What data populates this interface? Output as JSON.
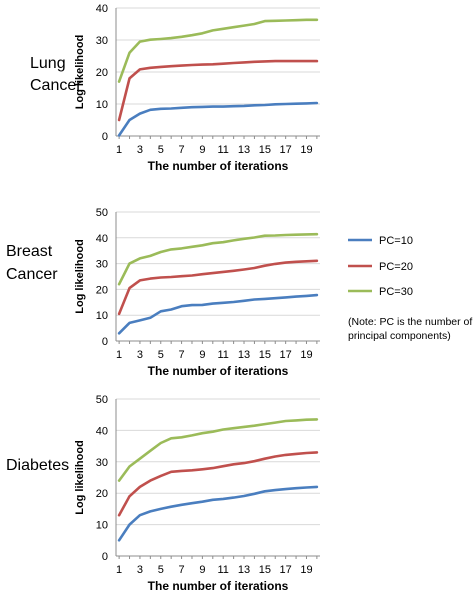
{
  "figure": {
    "note": "(Note: PC is the number of principal components)",
    "legend": [
      {
        "label": "PC=10",
        "color": "#4a7ebf"
      },
      {
        "label": "PC=20",
        "color": "#c0504d"
      },
      {
        "label": "PC=30",
        "color": "#9bbb59"
      }
    ]
  },
  "chart_data": [
    {
      "type": "line",
      "panel_label": [
        "Lung",
        "Cancer"
      ],
      "xlabel": "The number of iterations",
      "ylabel": "Log likelihood",
      "x": [
        1,
        2,
        3,
        4,
        5,
        6,
        7,
        8,
        9,
        10,
        11,
        12,
        13,
        14,
        15,
        16,
        17,
        18,
        19,
        20
      ],
      "xticks": [
        1,
        3,
        5,
        7,
        9,
        11,
        13,
        15,
        17,
        19
      ],
      "ylim": [
        0,
        40
      ],
      "yticks": [
        0,
        10,
        20,
        30,
        40
      ],
      "grid": "horizontal",
      "series": [
        {
          "name": "PC=10",
          "color": "#4a7ebf",
          "values": [
            0.2,
            5,
            7,
            8.2,
            8.5,
            8.6,
            8.8,
            9.0,
            9.1,
            9.2,
            9.2,
            9.3,
            9.4,
            9.6,
            9.7,
            9.9,
            10.0,
            10.1,
            10.2,
            10.3
          ]
        },
        {
          "name": "PC=20",
          "color": "#c0504d",
          "values": [
            5,
            18,
            20.8,
            21.3,
            21.6,
            21.8,
            22.0,
            22.2,
            22.3,
            22.4,
            22.6,
            22.8,
            23.0,
            23.2,
            23.3,
            23.4,
            23.4,
            23.4,
            23.4,
            23.4
          ]
        },
        {
          "name": "PC=30",
          "color": "#9bbb59",
          "values": [
            17,
            26,
            29.5,
            30.1,
            30.3,
            30.6,
            31.0,
            31.5,
            32.1,
            33.0,
            33.5,
            34.0,
            34.5,
            35.0,
            35.9,
            36.0,
            36.1,
            36.2,
            36.3,
            36.3
          ]
        }
      ]
    },
    {
      "type": "line",
      "panel_label": [
        "Breast",
        "Cancer"
      ],
      "xlabel": "The number of iterations",
      "ylabel": "Log likelihood",
      "x": [
        1,
        2,
        3,
        4,
        5,
        6,
        7,
        8,
        9,
        10,
        11,
        12,
        13,
        14,
        15,
        16,
        17,
        18,
        19,
        20
      ],
      "xticks": [
        1,
        3,
        5,
        7,
        9,
        11,
        13,
        15,
        17,
        19
      ],
      "ylim": [
        0,
        50
      ],
      "yticks": [
        0,
        10,
        20,
        30,
        40,
        50
      ],
      "grid": "horizontal",
      "series": [
        {
          "name": "PC=10",
          "color": "#4a7ebf",
          "values": [
            3,
            7,
            8,
            9,
            11.5,
            12.2,
            13.5,
            13.9,
            14.0,
            14.5,
            14.8,
            15.1,
            15.6,
            16.1,
            16.3,
            16.6,
            16.9,
            17.2,
            17.5,
            17.8
          ]
        },
        {
          "name": "PC=20",
          "color": "#c0504d",
          "values": [
            10.5,
            20.5,
            23.5,
            24.2,
            24.6,
            24.8,
            25.1,
            25.4,
            25.9,
            26.3,
            26.8,
            27.2,
            27.7,
            28.3,
            29.2,
            29.9,
            30.4,
            30.7,
            30.9,
            31.1
          ]
        },
        {
          "name": "PC=30",
          "color": "#9bbb59",
          "values": [
            22,
            30,
            32,
            33,
            34.5,
            35.5,
            35.9,
            36.5,
            37.1,
            37.9,
            38.3,
            39.0,
            39.6,
            40.1,
            40.8,
            40.9,
            41.1,
            41.2,
            41.3,
            41.4
          ]
        }
      ]
    },
    {
      "type": "line",
      "panel_label": [
        "Diabetes"
      ],
      "xlabel": "The number of iterations",
      "ylabel": "Log likelihood",
      "x": [
        1,
        2,
        3,
        4,
        5,
        6,
        7,
        8,
        9,
        10,
        11,
        12,
        13,
        14,
        15,
        16,
        17,
        18,
        19,
        20
      ],
      "xticks": [
        1,
        3,
        5,
        7,
        9,
        11,
        13,
        15,
        17,
        19
      ],
      "ylim": [
        0,
        50
      ],
      "yticks": [
        0,
        10,
        20,
        30,
        40,
        50
      ],
      "grid": "horizontal",
      "series": [
        {
          "name": "PC=10",
          "color": "#4a7ebf",
          "values": [
            5,
            10,
            13,
            14.2,
            15,
            15.7,
            16.3,
            16.8,
            17.3,
            17.9,
            18.2,
            18.6,
            19.1,
            19.8,
            20.6,
            21.0,
            21.3,
            21.6,
            21.8,
            22.0
          ]
        },
        {
          "name": "PC=20",
          "color": "#c0504d",
          "values": [
            13,
            19,
            22,
            24,
            25.5,
            26.8,
            27.1,
            27.3,
            27.6,
            28.0,
            28.6,
            29.2,
            29.6,
            30.2,
            31.0,
            31.7,
            32.2,
            32.5,
            32.8,
            33.0
          ]
        },
        {
          "name": "PC=30",
          "color": "#9bbb59",
          "values": [
            24,
            28.5,
            31,
            33.5,
            36,
            37.5,
            37.8,
            38.4,
            39.1,
            39.6,
            40.3,
            40.7,
            41.1,
            41.5,
            42.0,
            42.5,
            43.0,
            43.2,
            43.4,
            43.5
          ]
        }
      ]
    }
  ]
}
